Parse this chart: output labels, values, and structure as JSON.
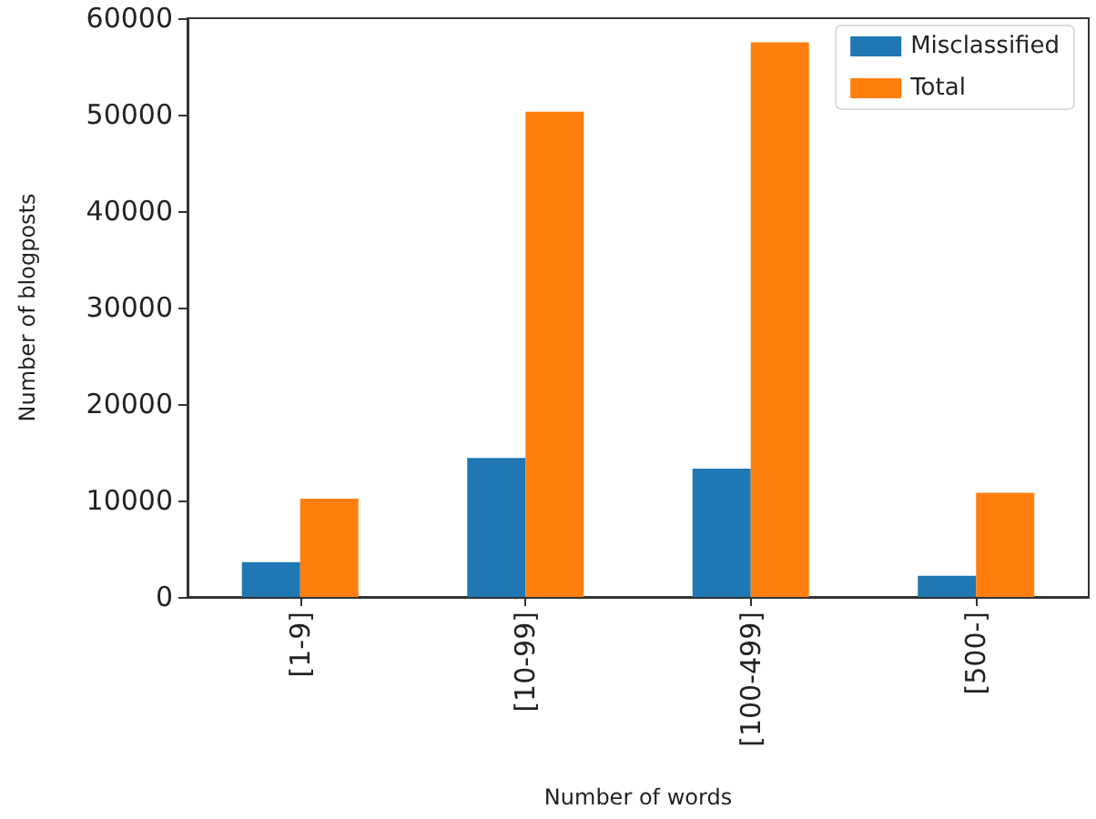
{
  "chart_data": {
    "type": "bar",
    "xlabel": "Number of words",
    "ylabel": "Number of blogposts",
    "categories": [
      "[1-9]",
      "[10-99]",
      "[100-499]",
      "[500-]"
    ],
    "series": [
      {
        "name": "Misclassified",
        "color": "#1f77b4",
        "values": [
          3600,
          14400,
          13300,
          2200
        ]
      },
      {
        "name": "Total",
        "color": "#ff7f0e",
        "values": [
          10200,
          50300,
          57500,
          10800
        ]
      }
    ],
    "ylim": [
      0,
      60000
    ],
    "yticks": [
      0,
      10000,
      20000,
      30000,
      40000,
      50000,
      60000
    ],
    "grid": false,
    "legend": "top right"
  }
}
